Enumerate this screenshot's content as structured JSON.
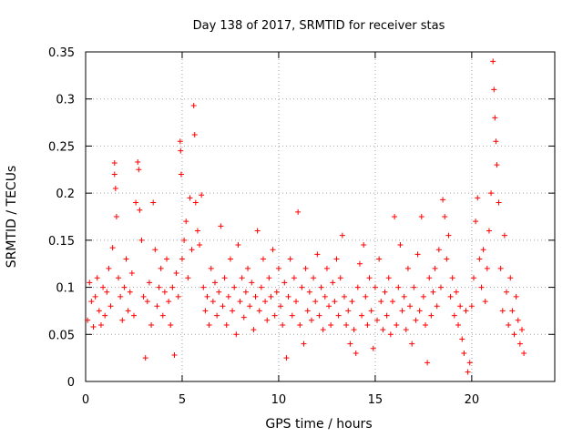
{
  "chart_data": {
    "type": "scatter",
    "title": "Day 138 of 2017, SRMTID for receiver stas",
    "xlabel": "GPS time / hours",
    "ylabel": "SRMTID / TECUs",
    "xlim": [
      0,
      24.3
    ],
    "ylim": [
      0,
      0.35
    ],
    "xticks": [
      0,
      5,
      10,
      15,
      20
    ],
    "xtick_labels": [
      "0",
      "5",
      "10",
      "15",
      "20"
    ],
    "yticks": [
      0,
      0.05,
      0.1,
      0.15,
      0.2,
      0.25,
      0.3,
      0.35
    ],
    "ytick_labels": [
      "0",
      "0.05",
      "0.1",
      "0.15",
      "0.2",
      "0.25",
      "0.3",
      "0.35"
    ],
    "grid": true,
    "marker": "+",
    "marker_color": "#ff0000",
    "data_span_hours": [
      0,
      22.7
    ],
    "series": [
      {
        "name": "SRMTID",
        "points": [
          [
            0.1,
            0.065
          ],
          [
            0.2,
            0.105
          ],
          [
            0.3,
            0.085
          ],
          [
            0.4,
            0.058
          ],
          [
            0.5,
            0.09
          ],
          [
            0.6,
            0.11
          ],
          [
            0.7,
            0.075
          ],
          [
            0.8,
            0.06
          ],
          [
            0.9,
            0.1
          ],
          [
            1.0,
            0.07
          ],
          [
            1.1,
            0.095
          ],
          [
            1.2,
            0.12
          ],
          [
            1.3,
            0.08
          ],
          [
            1.4,
            0.142
          ],
          [
            1.5,
            0.232
          ],
          [
            1.5,
            0.22
          ],
          [
            1.55,
            0.205
          ],
          [
            1.6,
            0.175
          ],
          [
            1.7,
            0.11
          ],
          [
            1.8,
            0.09
          ],
          [
            1.9,
            0.065
          ],
          [
            2.0,
            0.1
          ],
          [
            2.1,
            0.13
          ],
          [
            2.2,
            0.075
          ],
          [
            2.3,
            0.095
          ],
          [
            2.4,
            0.115
          ],
          [
            2.5,
            0.07
          ],
          [
            2.6,
            0.19
          ],
          [
            2.7,
            0.233
          ],
          [
            2.75,
            0.225
          ],
          [
            2.8,
            0.182
          ],
          [
            2.9,
            0.15
          ],
          [
            3.0,
            0.09
          ],
          [
            3.1,
            0.025
          ],
          [
            3.2,
            0.085
          ],
          [
            3.3,
            0.105
          ],
          [
            3.4,
            0.06
          ],
          [
            3.5,
            0.19
          ],
          [
            3.6,
            0.14
          ],
          [
            3.7,
            0.08
          ],
          [
            3.8,
            0.1
          ],
          [
            3.9,
            0.12
          ],
          [
            4.0,
            0.07
          ],
          [
            4.1,
            0.095
          ],
          [
            4.2,
            0.13
          ],
          [
            4.3,
            0.085
          ],
          [
            4.4,
            0.06
          ],
          [
            4.5,
            0.1
          ],
          [
            4.6,
            0.028
          ],
          [
            4.7,
            0.115
          ],
          [
            4.8,
            0.09
          ],
          [
            4.9,
            0.255
          ],
          [
            4.92,
            0.245
          ],
          [
            4.95,
            0.22
          ],
          [
            5.0,
            0.13
          ],
          [
            5.1,
            0.15
          ],
          [
            5.2,
            0.17
          ],
          [
            5.3,
            0.11
          ],
          [
            5.4,
            0.195
          ],
          [
            5.5,
            0.14
          ],
          [
            5.6,
            0.293
          ],
          [
            5.65,
            0.262
          ],
          [
            5.7,
            0.19
          ],
          [
            5.8,
            0.16
          ],
          [
            5.9,
            0.145
          ],
          [
            6.0,
            0.198
          ],
          [
            6.1,
            0.1
          ],
          [
            6.2,
            0.075
          ],
          [
            6.3,
            0.09
          ],
          [
            6.4,
            0.06
          ],
          [
            6.5,
            0.12
          ],
          [
            6.6,
            0.085
          ],
          [
            6.7,
            0.105
          ],
          [
            6.8,
            0.07
          ],
          [
            6.9,
            0.095
          ],
          [
            7.0,
            0.165
          ],
          [
            7.1,
            0.08
          ],
          [
            7.2,
            0.11
          ],
          [
            7.3,
            0.06
          ],
          [
            7.4,
            0.09
          ],
          [
            7.5,
            0.13
          ],
          [
            7.6,
            0.075
          ],
          [
            7.7,
            0.1
          ],
          [
            7.8,
            0.05
          ],
          [
            7.9,
            0.145
          ],
          [
            8.0,
            0.085
          ],
          [
            8.1,
            0.11
          ],
          [
            8.2,
            0.068
          ],
          [
            8.3,
            0.095
          ],
          [
            8.4,
            0.12
          ],
          [
            8.5,
            0.08
          ],
          [
            8.6,
            0.105
          ],
          [
            8.7,
            0.055
          ],
          [
            8.8,
            0.09
          ],
          [
            8.9,
            0.16
          ],
          [
            9.0,
            0.075
          ],
          [
            9.1,
            0.1
          ],
          [
            9.2,
            0.13
          ],
          [
            9.3,
            0.085
          ],
          [
            9.4,
            0.065
          ],
          [
            9.5,
            0.11
          ],
          [
            9.6,
            0.09
          ],
          [
            9.7,
            0.14
          ],
          [
            9.8,
            0.07
          ],
          [
            9.9,
            0.095
          ],
          [
            10.0,
            0.12
          ],
          [
            10.1,
            0.08
          ],
          [
            10.2,
            0.06
          ],
          [
            10.3,
            0.105
          ],
          [
            10.4,
            0.025
          ],
          [
            10.5,
            0.09
          ],
          [
            10.6,
            0.13
          ],
          [
            10.7,
            0.07
          ],
          [
            10.8,
            0.11
          ],
          [
            10.9,
            0.085
          ],
          [
            11.0,
            0.18
          ],
          [
            11.1,
            0.06
          ],
          [
            11.2,
            0.1
          ],
          [
            11.3,
            0.04
          ],
          [
            11.4,
            0.12
          ],
          [
            11.5,
            0.075
          ],
          [
            11.6,
            0.095
          ],
          [
            11.7,
            0.065
          ],
          [
            11.8,
            0.11
          ],
          [
            11.9,
            0.085
          ],
          [
            12.0,
            0.135
          ],
          [
            12.1,
            0.07
          ],
          [
            12.2,
            0.1
          ],
          [
            12.3,
            0.055
          ],
          [
            12.4,
            0.09
          ],
          [
            12.5,
            0.12
          ],
          [
            12.6,
            0.08
          ],
          [
            12.7,
            0.06
          ],
          [
            12.8,
            0.105
          ],
          [
            12.9,
            0.085
          ],
          [
            13.0,
            0.13
          ],
          [
            13.1,
            0.07
          ],
          [
            13.2,
            0.11
          ],
          [
            13.3,
            0.155
          ],
          [
            13.4,
            0.09
          ],
          [
            13.5,
            0.06
          ],
          [
            13.6,
            0.075
          ],
          [
            13.7,
            0.04
          ],
          [
            13.8,
            0.085
          ],
          [
            13.9,
            0.055
          ],
          [
            14.0,
            0.03
          ],
          [
            14.1,
            0.1
          ],
          [
            14.2,
            0.125
          ],
          [
            14.3,
            0.07
          ],
          [
            14.4,
            0.145
          ],
          [
            14.5,
            0.09
          ],
          [
            14.6,
            0.06
          ],
          [
            14.7,
            0.11
          ],
          [
            14.8,
            0.075
          ],
          [
            14.9,
            0.035
          ],
          [
            15.0,
            0.1
          ],
          [
            15.1,
            0.065
          ],
          [
            15.2,
            0.13
          ],
          [
            15.3,
            0.085
          ],
          [
            15.4,
            0.055
          ],
          [
            15.5,
            0.095
          ],
          [
            15.6,
            0.07
          ],
          [
            15.7,
            0.11
          ],
          [
            15.8,
            0.05
          ],
          [
            15.9,
            0.085
          ],
          [
            16.0,
            0.175
          ],
          [
            16.1,
            0.06
          ],
          [
            16.2,
            0.1
          ],
          [
            16.3,
            0.145
          ],
          [
            16.4,
            0.075
          ],
          [
            16.5,
            0.09
          ],
          [
            16.6,
            0.055
          ],
          [
            16.7,
            0.12
          ],
          [
            16.8,
            0.08
          ],
          [
            16.9,
            0.04
          ],
          [
            17.0,
            0.1
          ],
          [
            17.1,
            0.065
          ],
          [
            17.2,
            0.135
          ],
          [
            17.3,
            0.075
          ],
          [
            17.4,
            0.175
          ],
          [
            17.5,
            0.09
          ],
          [
            17.6,
            0.06
          ],
          [
            17.7,
            0.02
          ],
          [
            17.8,
            0.11
          ],
          [
            17.9,
            0.07
          ],
          [
            18.0,
            0.095
          ],
          [
            18.1,
            0.12
          ],
          [
            18.2,
            0.08
          ],
          [
            18.3,
            0.14
          ],
          [
            18.4,
            0.1
          ],
          [
            18.5,
            0.193
          ],
          [
            18.6,
            0.175
          ],
          [
            18.7,
            0.13
          ],
          [
            18.8,
            0.155
          ],
          [
            18.9,
            0.09
          ],
          [
            19.0,
            0.11
          ],
          [
            19.1,
            0.07
          ],
          [
            19.2,
            0.095
          ],
          [
            19.3,
            0.06
          ],
          [
            19.4,
            0.08
          ],
          [
            19.5,
            0.045
          ],
          [
            19.6,
            0.03
          ],
          [
            19.7,
            0.075
          ],
          [
            19.8,
            0.01
          ],
          [
            19.9,
            0.02
          ],
          [
            20.0,
            0.08
          ],
          [
            20.1,
            0.11
          ],
          [
            20.2,
            0.17
          ],
          [
            20.3,
            0.195
          ],
          [
            20.4,
            0.13
          ],
          [
            20.5,
            0.1
          ],
          [
            20.6,
            0.14
          ],
          [
            20.7,
            0.085
          ],
          [
            20.8,
            0.12
          ],
          [
            20.9,
            0.16
          ],
          [
            21.0,
            0.2
          ],
          [
            21.1,
            0.34
          ],
          [
            21.15,
            0.31
          ],
          [
            21.2,
            0.28
          ],
          [
            21.25,
            0.255
          ],
          [
            21.3,
            0.23
          ],
          [
            21.4,
            0.19
          ],
          [
            21.5,
            0.12
          ],
          [
            21.6,
            0.075
          ],
          [
            21.7,
            0.155
          ],
          [
            21.8,
            0.095
          ],
          [
            21.9,
            0.06
          ],
          [
            22.0,
            0.11
          ],
          [
            22.1,
            0.075
          ],
          [
            22.2,
            0.05
          ],
          [
            22.3,
            0.09
          ],
          [
            22.4,
            0.065
          ],
          [
            22.5,
            0.04
          ],
          [
            22.6,
            0.055
          ],
          [
            22.7,
            0.03
          ]
        ]
      }
    ]
  }
}
